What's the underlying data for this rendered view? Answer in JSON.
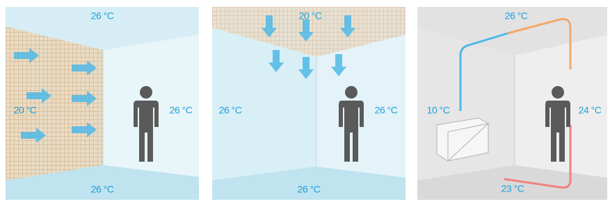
{
  "panels": [
    {
      "top": "26 °C",
      "left": "20 °C",
      "right": "26 °C",
      "bottom": "26 °C"
    },
    {
      "top": "20 °C",
      "left": "26 °C",
      "right": "26 °C",
      "bottom": "26 °C"
    },
    {
      "top": "26 °C",
      "left": "10 °C",
      "right": "24 °C",
      "bottom": "23 °C"
    }
  ]
}
